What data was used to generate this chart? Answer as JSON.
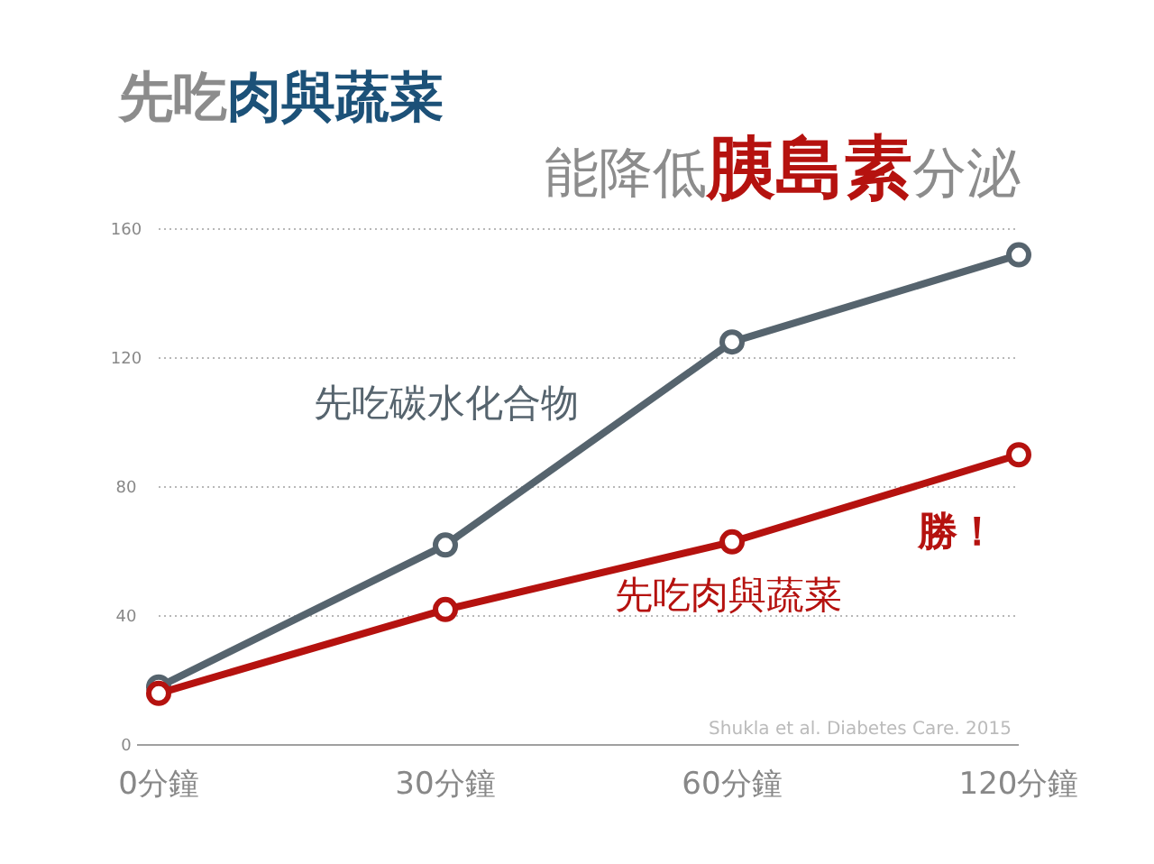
{
  "chart_data": {
    "type": "line",
    "title": "先吃肉與蔬菜",
    "subtitle": "能降低胰島素分泌",
    "categories": [
      "0分鐘",
      "30分鐘",
      "60分鐘",
      "120分鐘"
    ],
    "series": [
      {
        "name": "先吃碳水化合物",
        "color": "#56646e",
        "values": [
          18,
          62,
          125,
          152
        ]
      },
      {
        "name": "先吃肉與蔬菜",
        "color": "#b5120f",
        "values": [
          16,
          42,
          63,
          90
        ]
      }
    ],
    "ylim": [
      0,
      160
    ],
    "yticks": [
      0,
      40,
      80,
      120,
      160
    ],
    "grid": "y",
    "marker": "circle",
    "line_style": "solid",
    "annotations": [
      {
        "text": "勝！",
        "x": "120分鐘",
        "y": 90
      },
      "Shukla et al. Diabetes Care. 2015"
    ]
  }
}
